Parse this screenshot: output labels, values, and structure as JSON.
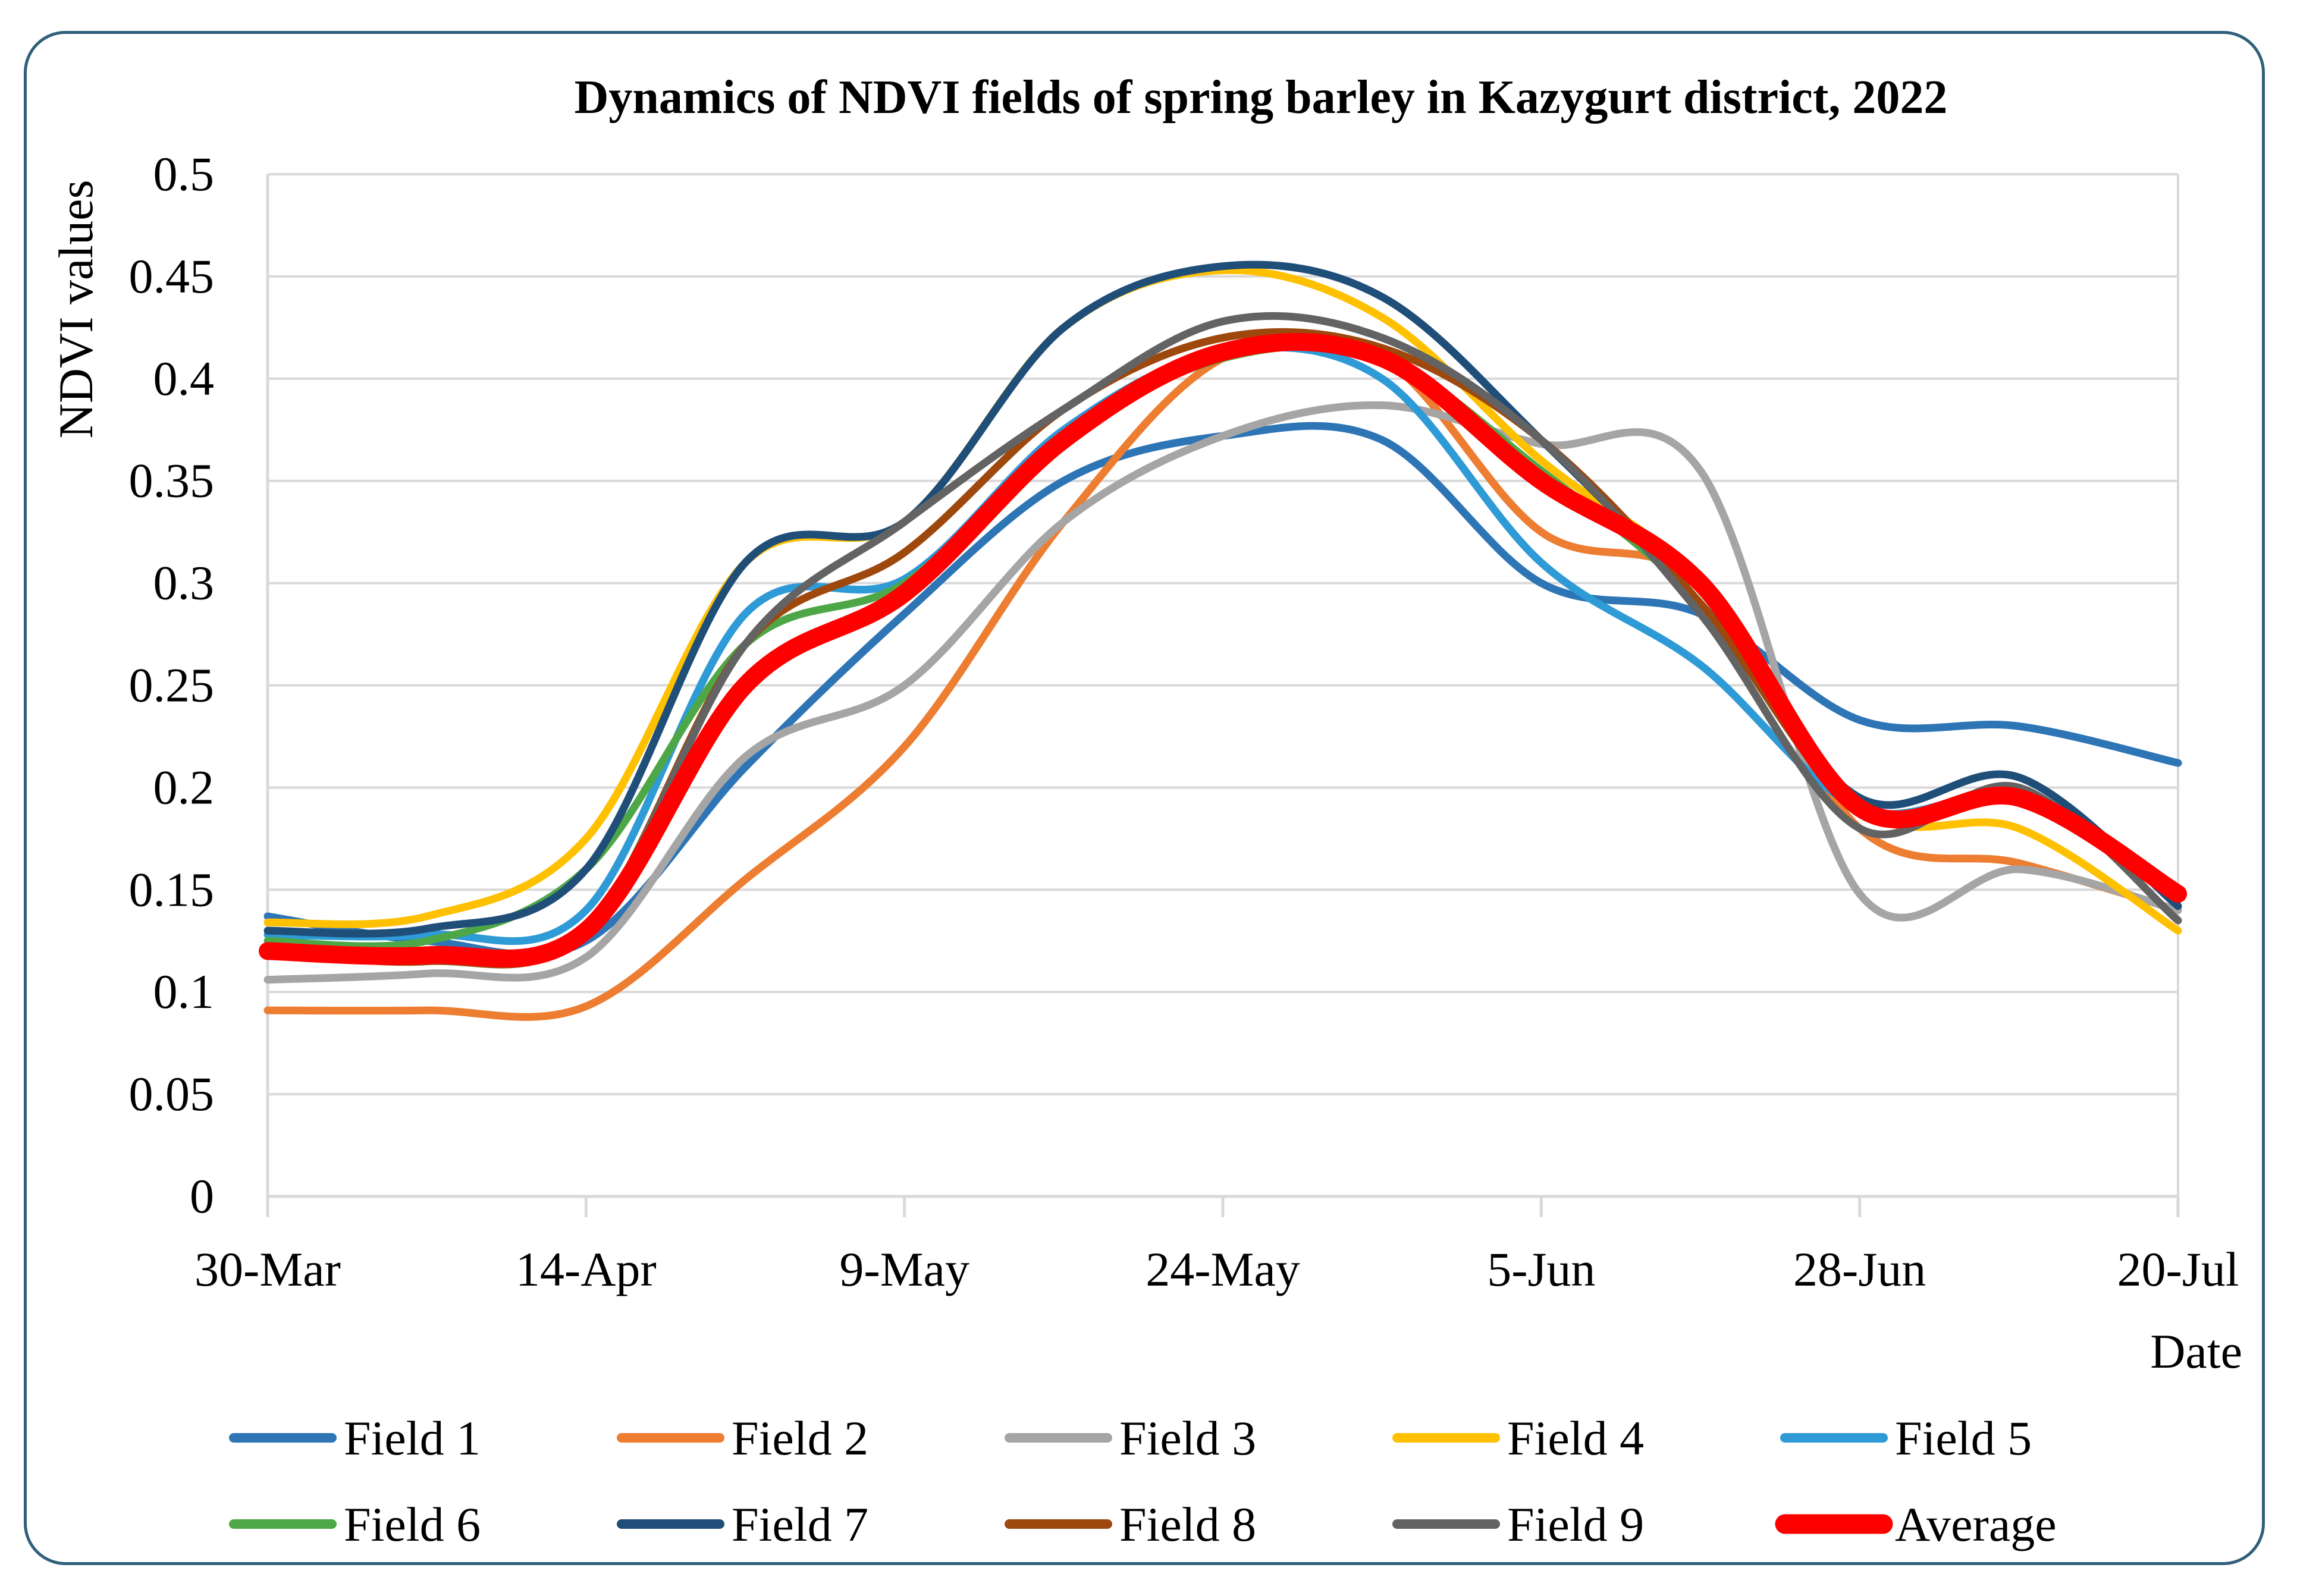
{
  "chart_data": {
    "type": "line",
    "title": "Dynamics of NDVI fields of spring barley in Kazygurt district, 2022",
    "ylabel": "NDVI values",
    "xlabel": "Date",
    "ylim": [
      0,
      0.5
    ],
    "yticks": [
      0,
      0.05,
      0.1,
      0.15,
      0.2,
      0.25,
      0.3,
      0.35,
      0.4,
      0.45,
      0.5
    ],
    "ytick_labels": [
      "0",
      "0.05",
      "0.1",
      "0.15",
      "0.2",
      "0.25",
      "0.3",
      "0.35",
      "0.4",
      "0.45",
      "0.5"
    ],
    "x_positions": [
      0,
      1,
      2,
      3,
      4,
      5,
      6,
      7,
      8,
      9,
      10,
      11,
      12
    ],
    "x_tick_labels": [
      {
        "pos": 0,
        "label": "30-Mar"
      },
      {
        "pos": 2,
        "label": "14-Apr"
      },
      {
        "pos": 4,
        "label": "9-May"
      },
      {
        "pos": 6,
        "label": "24-May"
      },
      {
        "pos": 8,
        "label": "5-Jun"
      },
      {
        "pos": 10,
        "label": "28-Jun"
      },
      {
        "pos": 12,
        "label": "20-Jul"
      }
    ],
    "grid": true,
    "legend_position": "bottom",
    "series": [
      {
        "name": "Field 1",
        "color": "#2e75b6",
        "width": 13,
        "values": [
          0.137,
          0.125,
          0.125,
          0.21,
          0.285,
          0.35,
          0.372,
          0.37,
          0.3,
          0.285,
          0.233,
          0.23,
          0.212
        ]
      },
      {
        "name": "Field 2",
        "color": "#ed7d31",
        "width": 13,
        "values": [
          0.091,
          0.091,
          0.093,
          0.155,
          0.22,
          0.33,
          0.41,
          0.41,
          0.325,
          0.3,
          0.18,
          0.163,
          0.14
        ]
      },
      {
        "name": "Field 3",
        "color": "#a5a5a5",
        "width": 13,
        "values": [
          0.106,
          0.109,
          0.117,
          0.215,
          0.25,
          0.33,
          0.372,
          0.387,
          0.368,
          0.355,
          0.148,
          0.16,
          0.14
        ]
      },
      {
        "name": "Field 4",
        "color": "#ffc000",
        "width": 13,
        "values": [
          0.134,
          0.137,
          0.175,
          0.31,
          0.33,
          0.425,
          0.453,
          0.43,
          0.36,
          0.3,
          0.19,
          0.18,
          0.13
        ]
      },
      {
        "name": "Field 5",
        "color": "#2e9ad6",
        "width": 13,
        "values": [
          0.128,
          0.128,
          0.14,
          0.285,
          0.302,
          0.375,
          0.413,
          0.4,
          0.31,
          0.26,
          0.19,
          0.195,
          0.145
        ]
      },
      {
        "name": "Field 6",
        "color": "#4ea747",
        "width": 13,
        "values": [
          0.125,
          0.125,
          0.16,
          0.27,
          0.3,
          0.37,
          0.41,
          0.41,
          0.355,
          0.29,
          0.19,
          0.195,
          0.148
        ]
      },
      {
        "name": "Field 7",
        "color": "#1f4e79",
        "width": 13,
        "values": [
          0.13,
          0.131,
          0.16,
          0.31,
          0.33,
          0.425,
          0.455,
          0.44,
          0.37,
          0.29,
          0.195,
          0.205,
          0.142
        ]
      },
      {
        "name": "Field 8",
        "color": "#9e480e",
        "width": 13,
        "values": [
          0.12,
          0.115,
          0.13,
          0.27,
          0.315,
          0.385,
          0.42,
          0.415,
          0.37,
          0.29,
          0.19,
          0.198,
          0.148
        ]
      },
      {
        "name": "Field 9",
        "color": "#636363",
        "width": 13,
        "values": [
          0.121,
          0.12,
          0.13,
          0.27,
          0.33,
          0.385,
          0.428,
          0.42,
          0.37,
          0.285,
          0.18,
          0.2,
          0.135
        ]
      },
      {
        "name": "Average",
        "color": "#ff0000",
        "width": 30,
        "values": [
          0.12,
          0.118,
          0.13,
          0.25,
          0.295,
          0.37,
          0.413,
          0.41,
          0.35,
          0.3,
          0.19,
          0.195,
          0.148
        ]
      }
    ]
  }
}
